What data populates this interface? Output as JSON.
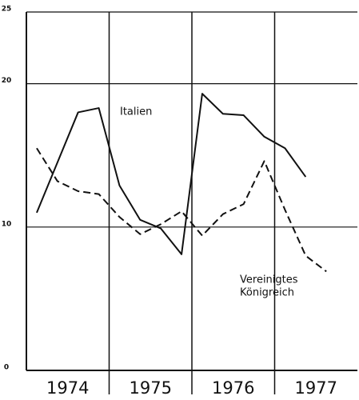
{
  "chart_data": {
    "type": "line",
    "categories": [
      null,
      null,
      null,
      null,
      null,
      null,
      null,
      null,
      null,
      null,
      null,
      null,
      null,
      null,
      null,
      null
    ],
    "groups": [
      {
        "label": "1974",
        "span": 4
      },
      {
        "label": "1975",
        "span": 4
      },
      {
        "label": "1976",
        "span": 4
      },
      {
        "label": "1977",
        "span": 4
      }
    ],
    "series": [
      {
        "name": "Italien",
        "color": "#111111",
        "dash": false,
        "values": [
          11,
          14.5,
          18,
          18.3,
          12.9,
          10.5,
          9.9,
          8.1,
          19.3,
          17.9,
          17.8,
          16.3,
          15.5,
          13.5,
          null,
          null
        ]
      },
      {
        "name": "Vereinigtes Königreich",
        "label_lines": [
          "Vereinigtes",
          "Königreich"
        ],
        "color": "#111111",
        "dash": true,
        "values": [
          15.5,
          13.2,
          12.5,
          12.3,
          10.7,
          9.5,
          10.2,
          11.1,
          9.4,
          10.9,
          11.6,
          14.6,
          11.2,
          8.0,
          6.9,
          null
        ]
      }
    ],
    "ylim": [
      0,
      25
    ],
    "yticks": [
      0,
      10,
      20,
      25
    ],
    "grid": true
  }
}
